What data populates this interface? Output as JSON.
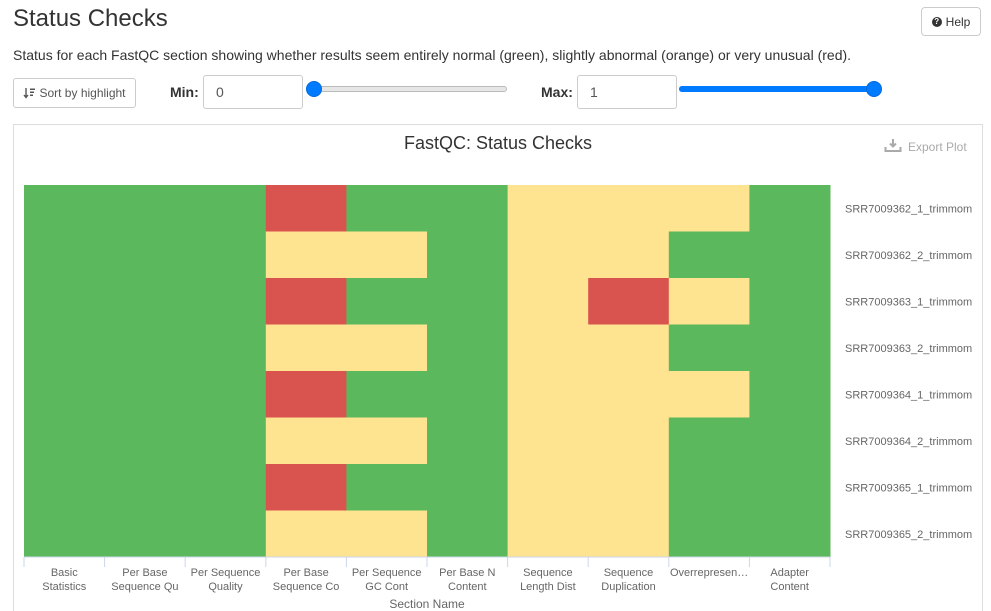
{
  "header": {
    "title": "Status Checks",
    "help_label": "Help",
    "help_icon": "question-circle-icon"
  },
  "description": "Status for each FastQC section showing whether results seem entirely normal (green), slightly abnormal (orange) or very unusual (red).",
  "controls": {
    "sort_label": "Sort by highlight",
    "sort_icon": "sort-amount-icon",
    "min_label": "Min:",
    "min_value": "0",
    "min_slider_fraction": 0,
    "max_label": "Max:",
    "max_value": "1",
    "max_slider_fraction": 1
  },
  "plot": {
    "export_label": "Export Plot",
    "export_icon": "download-icon"
  },
  "colors": {
    "pass": "#5cb85c",
    "warn": "#fee391",
    "fail": "#d9534f",
    "accent": "#007bff"
  },
  "chart_data": {
    "type": "heatmap",
    "title": "FastQC: Status Checks",
    "xlabel": "Section Name",
    "ylabel": "",
    "x_categories": [
      "Basic Statistics",
      "Per Base Sequence Qu",
      "Per Sequence Quality",
      "Per Base Sequence Co",
      "Per Sequence GC Cont",
      "Per Base N Content",
      "Sequence Length Dist",
      "Sequence Duplication",
      "Overrepresen…",
      "Adapter Content"
    ],
    "y_categories": [
      "SRR7009362_1_trimmom",
      "SRR7009362_2_trimmom",
      "SRR7009363_1_trimmom",
      "SRR7009363_2_trimmom",
      "SRR7009364_1_trimmom",
      "SRR7009364_2_trimmom",
      "SRR7009365_1_trimmom",
      "SRR7009365_2_trimmom"
    ],
    "values": [
      [
        1,
        1,
        1,
        0,
        1,
        1,
        0.5,
        0.5,
        0.5,
        1
      ],
      [
        1,
        1,
        1,
        0.5,
        0.5,
        1,
        0.5,
        0.5,
        1,
        1
      ],
      [
        1,
        1,
        1,
        0,
        1,
        1,
        0.5,
        0,
        0.5,
        1
      ],
      [
        1,
        1,
        1,
        0.5,
        0.5,
        1,
        0.5,
        0.5,
        1,
        1
      ],
      [
        1,
        1,
        1,
        0,
        1,
        1,
        0.5,
        0.5,
        0.5,
        1
      ],
      [
        1,
        1,
        1,
        0.5,
        0.5,
        1,
        0.5,
        0.5,
        1,
        1
      ],
      [
        1,
        1,
        1,
        0,
        1,
        1,
        0.5,
        0.5,
        1,
        1
      ],
      [
        1,
        1,
        1,
        0.5,
        0.5,
        1,
        0.5,
        0.5,
        1,
        1
      ]
    ],
    "value_legend": {
      "1": "pass",
      "0.5": "warn",
      "0": "fail"
    },
    "grid": false,
    "legend": "none"
  }
}
